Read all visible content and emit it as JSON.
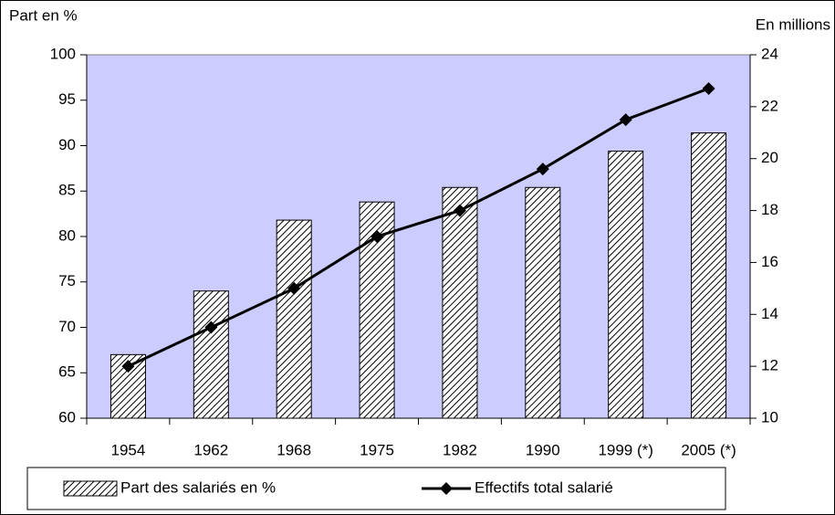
{
  "chart_data": {
    "type": "bar",
    "y_label": "Part en %",
    "y2_label": "En millions",
    "categories": [
      "1954",
      "1962",
      "1968",
      "1975",
      "1982",
      "1990",
      "1999 (*)",
      "2005 (*)"
    ],
    "series": [
      {
        "name": "Part des salariés en %",
        "type": "bar",
        "color": "#000000",
        "values": [
          67,
          74,
          81.8,
          83.8,
          85.4,
          85.4,
          89.4,
          91.4
        ]
      },
      {
        "name": "Effectifs total salarié",
        "type": "line",
        "axis": "y2",
        "color": "#000000",
        "values": [
          12.0,
          13.5,
          15.0,
          17.0,
          18.0,
          19.6,
          21.5,
          22.7
        ]
      }
    ],
    "ylim": [
      60,
      100
    ],
    "yticks": [
      60,
      65,
      70,
      75,
      80,
      85,
      90,
      95,
      100
    ],
    "y2lim": [
      10,
      24
    ],
    "y2ticks": [
      10,
      12,
      14,
      16,
      18,
      20,
      22,
      24
    ],
    "plot_background": "#ccccff",
    "legend": "bottom"
  }
}
